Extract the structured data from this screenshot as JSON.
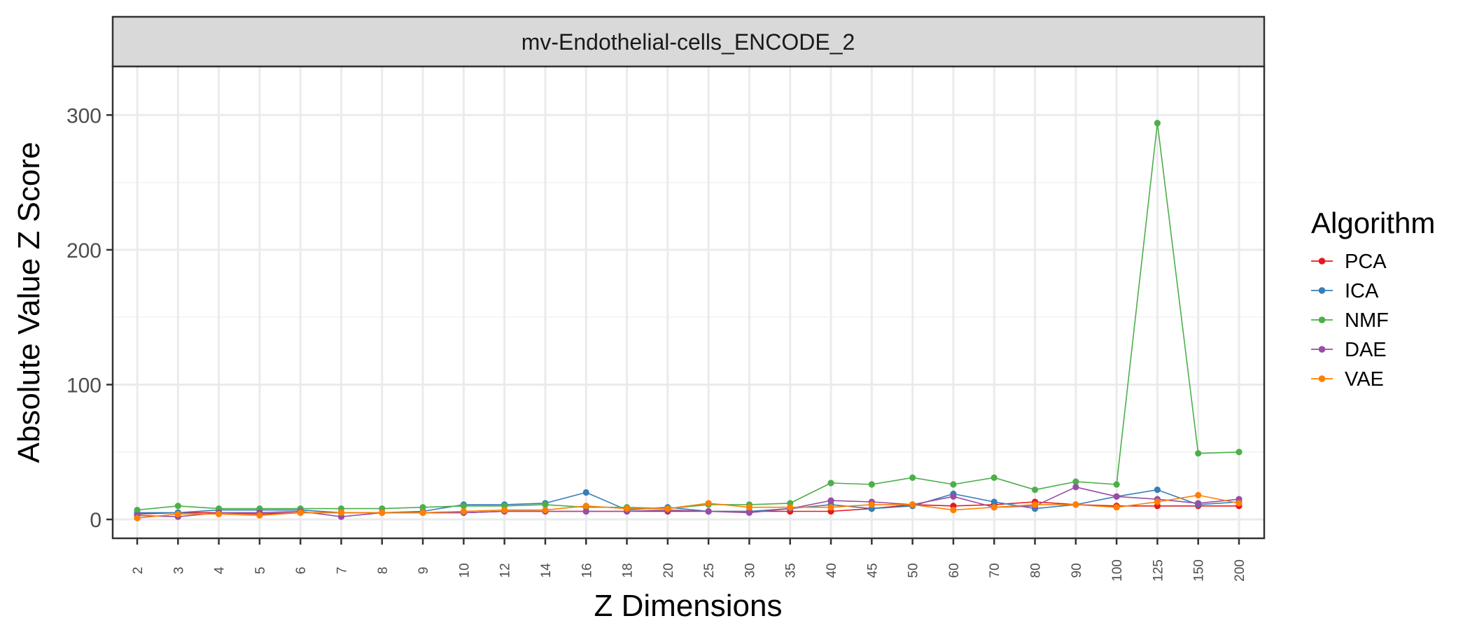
{
  "chart_data": {
    "type": "line",
    "facet_title": "mv-Endothelial-cells_ENCODE_2",
    "xlabel": "Z Dimensions",
    "ylabel": "Absolute Value Z Score",
    "categories": [
      "2",
      "3",
      "4",
      "5",
      "6",
      "7",
      "8",
      "9",
      "10",
      "12",
      "14",
      "16",
      "18",
      "20",
      "25",
      "30",
      "35",
      "40",
      "45",
      "50",
      "60",
      "70",
      "80",
      "90",
      "100",
      "125",
      "150",
      "200"
    ],
    "ylim": [
      -14,
      336
    ],
    "yticks": [
      0,
      100,
      200,
      300
    ],
    "grid": true,
    "legend": {
      "title": "Algorithm",
      "position": "right"
    },
    "series": [
      {
        "name": "PCA",
        "color": "#E41A1C",
        "values": [
          4,
          5,
          5,
          4,
          5,
          5,
          5,
          5,
          5,
          6,
          6,
          6,
          6,
          6,
          6,
          6,
          6,
          6,
          8,
          11,
          10,
          11,
          13,
          11,
          10,
          10,
          10,
          10
        ]
      },
      {
        "name": "ICA",
        "color": "#377EB8",
        "values": [
          5,
          5,
          7,
          7,
          7,
          5,
          5,
          6,
          11,
          11,
          12,
          20,
          7,
          9,
          6,
          6,
          8,
          11,
          8,
          10,
          19,
          13,
          8,
          11,
          17,
          22,
          11,
          13
        ]
      },
      {
        "name": "NMF",
        "color": "#4DAF4A",
        "values": [
          7,
          10,
          8,
          8,
          8,
          8,
          8,
          9,
          10,
          10,
          11,
          9,
          9,
          8,
          11,
          11,
          12,
          27,
          26,
          31,
          26,
          31,
          22,
          28,
          26,
          294,
          49,
          50
        ]
      },
      {
        "name": "DAE",
        "color": "#984EA3",
        "values": [
          3,
          2,
          5,
          5,
          6,
          2,
          5,
          5,
          5,
          6,
          6,
          6,
          6,
          7,
          6,
          5,
          8,
          14,
          13,
          11,
          17,
          9,
          10,
          24,
          17,
          15,
          12,
          15
        ]
      },
      {
        "name": "VAE",
        "color": "#FF7F00",
        "values": [
          1,
          4,
          4,
          3,
          5,
          5,
          5,
          5,
          6,
          7,
          7,
          10,
          8,
          8,
          12,
          9,
          9,
          9,
          11,
          11,
          7,
          9,
          11,
          11,
          9,
          13,
          18,
          12
        ]
      }
    ]
  }
}
